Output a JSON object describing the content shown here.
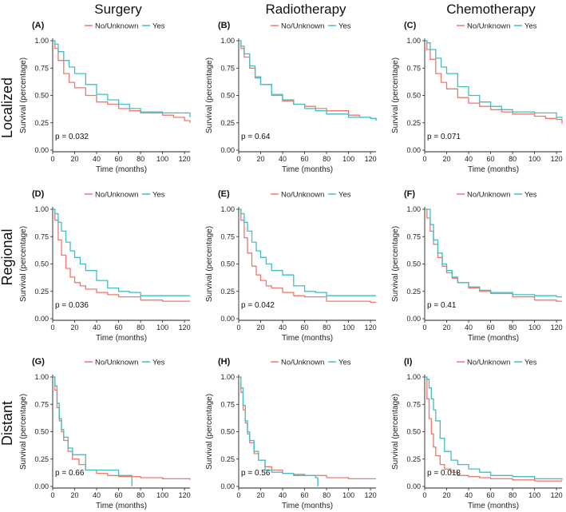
{
  "column_titles": [
    "Surgery",
    "Radiotherapy",
    "Chemotherapy"
  ],
  "row_titles": [
    "Localized",
    "Regional",
    "Distant"
  ],
  "legend": {
    "labels": [
      "No/Unknown",
      "Yes"
    ]
  },
  "colors": {
    "no_unknown": "#F0776C",
    "yes": "#3FBFC4",
    "axis": "#222222"
  },
  "axis_labels": {
    "x": "Time (months)",
    "y": "Survival (percentage)"
  },
  "x_ticks": [
    "0",
    "20",
    "40",
    "60",
    "80",
    "100",
    "120"
  ],
  "y_ticks": [
    "0.00",
    "0.25",
    "0.50",
    "0.75",
    "1.00"
  ],
  "chart_data": [
    {
      "type": "line",
      "panel": "(A)",
      "group": "Localized",
      "treatment": "Surgery",
      "p_value": "p = 0.032",
      "xlim": [
        0,
        125
      ],
      "ylim": [
        0,
        1
      ],
      "series": [
        {
          "name": "No/Unknown",
          "x": [
            0,
            2,
            5,
            10,
            15,
            20,
            30,
            40,
            50,
            60,
            70,
            80,
            100,
            110,
            120,
            125
          ],
          "y": [
            1.0,
            0.93,
            0.82,
            0.7,
            0.62,
            0.57,
            0.5,
            0.44,
            0.42,
            0.38,
            0.36,
            0.34,
            0.32,
            0.3,
            0.27,
            0.25
          ]
        },
        {
          "name": "Yes",
          "x": [
            0,
            2,
            5,
            10,
            15,
            20,
            30,
            40,
            50,
            60,
            70,
            80,
            100,
            110,
            120,
            125
          ],
          "y": [
            1.0,
            0.97,
            0.9,
            0.82,
            0.76,
            0.7,
            0.6,
            0.51,
            0.46,
            0.42,
            0.38,
            0.35,
            0.34,
            0.34,
            0.34,
            0.3
          ]
        }
      ]
    },
    {
      "type": "line",
      "panel": "(B)",
      "group": "Localized",
      "treatment": "Radiotherapy",
      "p_value": "p = 0.64",
      "xlim": [
        0,
        125
      ],
      "ylim": [
        0,
        1
      ],
      "series": [
        {
          "name": "No/Unknown",
          "x": [
            0,
            2,
            5,
            10,
            15,
            20,
            30,
            40,
            50,
            60,
            70,
            80,
            100,
            110,
            120,
            125
          ],
          "y": [
            1.0,
            0.93,
            0.85,
            0.75,
            0.66,
            0.6,
            0.5,
            0.45,
            0.42,
            0.4,
            0.38,
            0.36,
            0.32,
            0.3,
            0.29,
            0.27
          ]
        },
        {
          "name": "Yes",
          "x": [
            0,
            2,
            5,
            10,
            15,
            20,
            30,
            40,
            50,
            60,
            70,
            80,
            100,
            110,
            120,
            125
          ],
          "y": [
            1.0,
            0.95,
            0.88,
            0.77,
            0.67,
            0.6,
            0.51,
            0.46,
            0.42,
            0.38,
            0.36,
            0.33,
            0.3,
            0.3,
            0.29,
            0.27
          ]
        }
      ]
    },
    {
      "type": "line",
      "panel": "(C)",
      "group": "Localized",
      "treatment": "Chemotherapy",
      "p_value": "p = 0.071",
      "xlim": [
        0,
        125
      ],
      "ylim": [
        0,
        1
      ],
      "series": [
        {
          "name": "No/Unknown",
          "x": [
            0,
            2,
            5,
            10,
            15,
            20,
            30,
            40,
            50,
            60,
            70,
            80,
            100,
            110,
            120,
            125
          ],
          "y": [
            1.0,
            0.92,
            0.83,
            0.7,
            0.62,
            0.56,
            0.48,
            0.43,
            0.4,
            0.37,
            0.35,
            0.33,
            0.31,
            0.29,
            0.28,
            0.24
          ]
        },
        {
          "name": "Yes",
          "x": [
            0,
            2,
            5,
            10,
            15,
            20,
            30,
            40,
            50,
            60,
            70,
            80,
            100,
            110,
            120,
            125
          ],
          "y": [
            1.0,
            0.98,
            0.92,
            0.84,
            0.76,
            0.7,
            0.58,
            0.5,
            0.44,
            0.4,
            0.37,
            0.35,
            0.34,
            0.34,
            0.3,
            0.29
          ]
        }
      ]
    },
    {
      "type": "line",
      "panel": "(D)",
      "group": "Regional",
      "treatment": "Surgery",
      "p_value": "p = 0.036",
      "xlim": [
        0,
        125
      ],
      "ylim": [
        0,
        1
      ],
      "series": [
        {
          "name": "No/Unknown",
          "x": [
            0,
            2,
            5,
            8,
            12,
            16,
            20,
            25,
            30,
            40,
            50,
            60,
            80,
            100,
            120,
            125
          ],
          "y": [
            1.0,
            0.9,
            0.72,
            0.58,
            0.46,
            0.38,
            0.33,
            0.3,
            0.27,
            0.24,
            0.22,
            0.2,
            0.17,
            0.16,
            0.16,
            0.16
          ]
        },
        {
          "name": "Yes",
          "x": [
            0,
            2,
            5,
            8,
            12,
            16,
            20,
            25,
            30,
            40,
            50,
            60,
            70,
            80,
            100,
            125
          ],
          "y": [
            1.0,
            0.96,
            0.88,
            0.8,
            0.7,
            0.62,
            0.56,
            0.5,
            0.44,
            0.35,
            0.28,
            0.25,
            0.24,
            0.21,
            0.21,
            0.21
          ]
        }
      ]
    },
    {
      "type": "line",
      "panel": "(E)",
      "group": "Regional",
      "treatment": "Radiotherapy",
      "p_value": "p = 0.042",
      "xlim": [
        0,
        125
      ],
      "ylim": [
        0,
        1
      ],
      "series": [
        {
          "name": "No/Unknown",
          "x": [
            0,
            2,
            5,
            8,
            12,
            16,
            20,
            25,
            30,
            40,
            50,
            60,
            80,
            100,
            120,
            125
          ],
          "y": [
            1.0,
            0.9,
            0.74,
            0.6,
            0.48,
            0.4,
            0.35,
            0.3,
            0.28,
            0.24,
            0.21,
            0.2,
            0.16,
            0.16,
            0.15,
            0.15
          ]
        },
        {
          "name": "Yes",
          "x": [
            0,
            2,
            5,
            8,
            12,
            16,
            20,
            25,
            30,
            40,
            50,
            60,
            70,
            80,
            100,
            125
          ],
          "y": [
            1.0,
            0.96,
            0.88,
            0.8,
            0.7,
            0.62,
            0.56,
            0.5,
            0.44,
            0.4,
            0.3,
            0.25,
            0.24,
            0.21,
            0.21,
            0.21
          ]
        }
      ]
    },
    {
      "type": "line",
      "panel": "(F)",
      "group": "Regional",
      "treatment": "Chemotherapy",
      "p_value": "p = 0.41",
      "xlim": [
        0,
        125
      ],
      "ylim": [
        0,
        1
      ],
      "series": [
        {
          "name": "No/Unknown",
          "x": [
            0,
            2,
            5,
            8,
            12,
            16,
            20,
            25,
            30,
            40,
            50,
            60,
            80,
            100,
            120,
            125
          ],
          "y": [
            1.0,
            0.92,
            0.8,
            0.68,
            0.56,
            0.48,
            0.42,
            0.37,
            0.33,
            0.28,
            0.25,
            0.23,
            0.2,
            0.17,
            0.16,
            0.16
          ]
        },
        {
          "name": "Yes",
          "x": [
            0,
            2,
            5,
            8,
            12,
            16,
            20,
            25,
            30,
            40,
            50,
            60,
            80,
            100,
            120,
            125
          ],
          "y": [
            1.0,
            1.0,
            0.86,
            0.72,
            0.6,
            0.5,
            0.44,
            0.38,
            0.33,
            0.29,
            0.26,
            0.24,
            0.22,
            0.21,
            0.2,
            0.2
          ]
        }
      ]
    },
    {
      "type": "line",
      "panel": "(G)",
      "group": "Distant",
      "treatment": "Surgery",
      "p_value": "p = 0.66",
      "xlim": [
        0,
        125
      ],
      "ylim": [
        0,
        1
      ],
      "series": [
        {
          "name": "No/Unknown",
          "x": [
            0,
            2,
            4,
            6,
            8,
            10,
            14,
            18,
            24,
            30,
            40,
            50,
            60,
            80,
            100,
            125
          ],
          "y": [
            1.0,
            0.88,
            0.72,
            0.6,
            0.5,
            0.42,
            0.32,
            0.25,
            0.2,
            0.15,
            0.12,
            0.1,
            0.09,
            0.08,
            0.07,
            0.06
          ]
        },
        {
          "name": "Yes",
          "x": [
            0,
            2,
            4,
            6,
            8,
            10,
            14,
            18,
            24,
            30,
            40,
            50,
            60,
            72,
            72.1
          ],
          "y": [
            1.0,
            0.92,
            0.76,
            0.62,
            0.52,
            0.45,
            0.35,
            0.29,
            0.29,
            0.15,
            0.15,
            0.15,
            0.1,
            0.1,
            0.0
          ]
        }
      ]
    },
    {
      "type": "line",
      "panel": "(H)",
      "group": "Distant",
      "treatment": "Radiotherapy",
      "p_value": "p = 0.56",
      "xlim": [
        0,
        125
      ],
      "ylim": [
        0,
        1
      ],
      "series": [
        {
          "name": "No/Unknown",
          "x": [
            0,
            2,
            4,
            6,
            8,
            10,
            14,
            18,
            24,
            30,
            40,
            50,
            60,
            80,
            100,
            125
          ],
          "y": [
            1.0,
            0.86,
            0.7,
            0.58,
            0.48,
            0.4,
            0.3,
            0.24,
            0.18,
            0.15,
            0.12,
            0.1,
            0.1,
            0.08,
            0.07,
            0.07
          ]
        },
        {
          "name": "Yes",
          "x": [
            0,
            2,
            4,
            6,
            8,
            10,
            14,
            18,
            24,
            30,
            40,
            50,
            60,
            70,
            72,
            72.1
          ],
          "y": [
            1.0,
            0.9,
            0.74,
            0.6,
            0.5,
            0.42,
            0.32,
            0.24,
            0.15,
            0.13,
            0.12,
            0.11,
            0.1,
            0.08,
            0.06,
            0.0
          ]
        }
      ]
    },
    {
      "type": "line",
      "panel": "(I)",
      "group": "Distant",
      "treatment": "Chemotherapy",
      "p_value": "p = 0.018",
      "xlim": [
        0,
        125
      ],
      "ylim": [
        0,
        1
      ],
      "series": [
        {
          "name": "No/Unknown",
          "x": [
            0,
            2,
            4,
            6,
            8,
            10,
            14,
            18,
            24,
            30,
            40,
            50,
            60,
            80,
            100,
            125
          ],
          "y": [
            1.0,
            0.8,
            0.62,
            0.48,
            0.36,
            0.28,
            0.2,
            0.16,
            0.13,
            0.1,
            0.09,
            0.08,
            0.07,
            0.06,
            0.05,
            0.05
          ]
        },
        {
          "name": "Yes",
          "x": [
            0,
            2,
            4,
            6,
            8,
            10,
            14,
            18,
            24,
            30,
            40,
            50,
            60,
            80,
            100,
            125
          ],
          "y": [
            1.0,
            0.98,
            0.9,
            0.8,
            0.7,
            0.6,
            0.44,
            0.32,
            0.24,
            0.2,
            0.16,
            0.13,
            0.1,
            0.09,
            0.07,
            0.06
          ]
        }
      ]
    }
  ]
}
